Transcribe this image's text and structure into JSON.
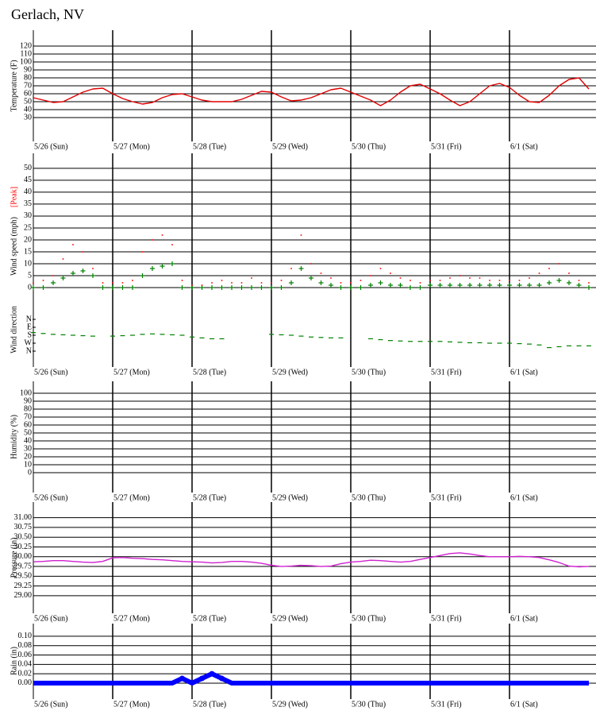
{
  "chart_data": {
    "title": "Gerlach, NV",
    "xlim": [
      0,
      7
    ],
    "xticks": [
      {
        "value": 0,
        "label": "5/26 (Sun)"
      },
      {
        "value": 1,
        "label": "5/27 (Mon)"
      },
      {
        "value": 2,
        "label": "5/28 (Tue)"
      },
      {
        "value": 3,
        "label": "5/29 (Wed)"
      },
      {
        "value": 4,
        "label": "5/30 (Thu)"
      },
      {
        "value": 5,
        "label": "5/31 (Fri)"
      },
      {
        "value": 6,
        "label": "6/1 (Sat)"
      }
    ],
    "x": [
      0,
      0.125,
      0.25,
      0.375,
      0.5,
      0.625,
      0.75,
      0.875,
      1,
      1.125,
      1.25,
      1.375,
      1.5,
      1.625,
      1.75,
      1.875,
      2,
      2.125,
      2.25,
      2.375,
      2.5,
      2.625,
      2.75,
      2.875,
      3,
      3.125,
      3.25,
      3.375,
      3.5,
      3.625,
      3.75,
      3.875,
      4,
      4.125,
      4.25,
      4.375,
      4.5,
      4.625,
      4.75,
      4.875,
      5,
      5.125,
      5.25,
      5.375,
      5.5,
      5.625,
      5.75,
      5.875,
      6,
      6.125,
      6.25,
      6.375,
      6.5,
      6.625,
      6.75,
      6.875,
      7
    ],
    "panels": [
      {
        "type": "line",
        "ylabel": "Temperature (F)",
        "ylim": [
          0,
          140
        ],
        "grid": true,
        "yticks": [
          30,
          40,
          50,
          60,
          70,
          80,
          90,
          100,
          110,
          120
        ],
        "series": [
          {
            "color": "#e00000",
            "values": [
              55,
              52,
              49,
              50,
              56,
              62,
              66,
              67,
              60,
              54,
              50,
              47,
              49,
              55,
              59,
              60,
              56,
              52,
              50,
              50,
              50,
              53,
              58,
              63,
              62,
              56,
              51,
              52,
              55,
              60,
              65,
              67,
              62,
              57,
              52,
              45,
              52,
              62,
              70,
              72,
              66,
              60,
              52,
              45,
              50,
              60,
              70,
              73,
              68,
              58,
              50,
              49,
              58,
              70,
              78,
              80,
              66
            ]
          }
        ]
      },
      {
        "type": "scatter",
        "ylabel": "Wind speed (mph)",
        "ylim": [
          -2,
          56.3
        ],
        "grid": true,
        "yticks": [
          0,
          5,
          10,
          15,
          20,
          25,
          30,
          35,
          40,
          45,
          50
        ],
        "series": [
          {
            "color": "#008000",
            "marker": "plus",
            "values": [
              0,
              0,
              2,
              4,
              6,
              7,
              5,
              0,
              0,
              0,
              0,
              5,
              8,
              9,
              10,
              0,
              0,
              0,
              0,
              0,
              0,
              0,
              0,
              0,
              0,
              0,
              2,
              8,
              4,
              2,
              1,
              0,
              0,
              0,
              1,
              2,
              1,
              1,
              0,
              0,
              1,
              1,
              1,
              1,
              1,
              1,
              1,
              1,
              1,
              1,
              1,
              1,
              2,
              3,
              2,
              1,
              0
            ]
          },
          {
            "name": "[Peak]",
            "color": "#ff0000",
            "marker": "dot",
            "values": [
              2,
              3,
              5,
              12,
              18,
              15,
              8,
              2,
              2,
              2,
              3,
              15,
              20,
              22,
              18,
              3,
              1,
              1,
              2,
              3,
              2,
              2,
              4,
              2,
              2,
              3,
              8,
              22,
              10,
              6,
              4,
              2,
              2,
              3,
              5,
              8,
              6,
              4,
              3,
              2,
              3,
              3,
              4,
              5,
              4,
              4,
              3,
              3,
              3,
              3,
              4,
              6,
              8,
              10,
              6,
              3,
              2
            ]
          }
        ]
      },
      {
        "type": "scatter",
        "ylabel": "Wind direction",
        "ylim": [
          540,
          -306
        ],
        "grid": false,
        "yticks": [
          {
            "value": 0,
            "label": "N"
          },
          {
            "value": 90,
            "label": "E"
          },
          {
            "value": 180,
            "label": "S"
          },
          {
            "value": 270,
            "label": "W"
          },
          {
            "value": 360,
            "label": "N"
          }
        ],
        "series": [
          {
            "color": "#008000",
            "marker": "dash",
            "values": [
              150,
              160,
              170,
              175,
              180,
              185,
              190,
              null,
              190,
              185,
              180,
              170,
              165,
              170,
              175,
              180,
              200,
              210,
              220,
              220,
              null,
              null,
              null,
              null,
              170,
              175,
              180,
              190,
              200,
              205,
              210,
              210,
              null,
              null,
              220,
              230,
              240,
              245,
              250,
              250,
              250,
              250,
              255,
              260,
              265,
              265,
              270,
              270,
              270,
              275,
              280,
              290,
              320,
              310,
              300,
              300,
              300
            ]
          }
        ]
      },
      {
        "type": "line",
        "ylabel": "Humidity (%)",
        "ylim": [
          -25,
          115
        ],
        "grid": true,
        "yticks": [
          0,
          10,
          20,
          30,
          40,
          50,
          60,
          70,
          80,
          90,
          100
        ],
        "series": []
      },
      {
        "type": "line",
        "ylabel": "Pressure (in)",
        "ylim": [
          28.55,
          31.4
        ],
        "grid": true,
        "yticks": [
          {
            "value": 29,
            "label": "29.00"
          },
          {
            "value": 29.25,
            "label": "29.25"
          },
          {
            "value": 29.5,
            "label": "29.50"
          },
          {
            "value": 29.75,
            "label": "29.75"
          },
          {
            "value": 30,
            "label": "30.00"
          },
          {
            "value": 30.25,
            "label": "30.25"
          },
          {
            "value": 30.5,
            "label": "30.50"
          },
          {
            "value": 30.75,
            "label": "30.75"
          },
          {
            "value": 31,
            "label": "31.00"
          }
        ],
        "series": [
          {
            "color": "#d020d0",
            "values": [
              29.87,
              29.88,
              29.9,
              29.9,
              29.88,
              29.86,
              29.85,
              29.88,
              29.97,
              29.98,
              29.96,
              29.95,
              29.93,
              29.92,
              29.9,
              29.88,
              29.87,
              29.86,
              29.84,
              29.85,
              29.88,
              29.88,
              29.86,
              29.83,
              29.78,
              29.75,
              29.76,
              29.78,
              29.77,
              29.75,
              29.76,
              29.82,
              29.86,
              29.88,
              29.91,
              29.9,
              29.88,
              29.86,
              29.88,
              29.93,
              29.98,
              30.03,
              30.08,
              30.1,
              30.07,
              30.03,
              30,
              30,
              30,
              30.01,
              30,
              29.98,
              29.92,
              29.85,
              29.76,
              29.74,
              29.75
            ]
          }
        ]
      },
      {
        "type": "line",
        "ylabel": "Rain (in)",
        "ylim": [
          -0.034,
          0.127
        ],
        "grid": true,
        "yticks": [
          {
            "value": 0,
            "label": "0.00"
          },
          {
            "value": 0.02,
            "label": "0.02"
          },
          {
            "value": 0.04,
            "label": "0.04"
          },
          {
            "value": 0.06,
            "label": "0.06"
          },
          {
            "value": 0.08,
            "label": "0.08"
          },
          {
            "value": 0.1,
            "label": "0.10"
          }
        ],
        "series": [
          {
            "color": "#0000ff",
            "width": 6,
            "marker": "circle",
            "values": [
              0,
              0,
              0,
              0,
              0,
              0,
              0,
              0,
              0,
              0,
              0,
              0,
              0,
              0,
              0,
              0.01,
              0,
              0.01,
              0.02,
              0.01,
              0,
              0,
              0,
              0,
              0,
              0,
              0,
              0,
              0,
              0,
              0,
              0,
              0,
              0,
              0,
              0,
              0,
              0,
              0,
              0,
              0,
              0,
              0,
              0,
              0,
              0,
              0,
              0,
              0,
              0,
              0,
              0,
              0,
              0,
              0,
              0,
              0
            ]
          }
        ]
      }
    ]
  }
}
